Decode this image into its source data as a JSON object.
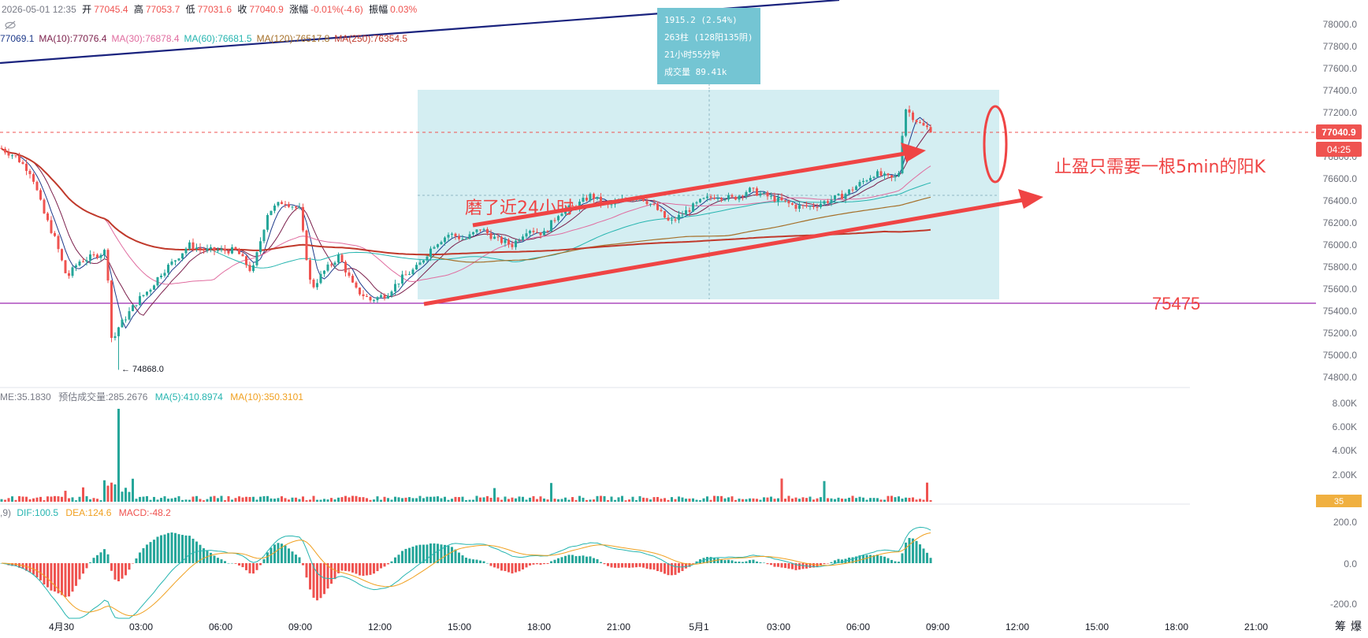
{
  "header": {
    "datetime": "2026-05-01 12:35",
    "open_label": "开",
    "open": "77045.4",
    "high_label": "高",
    "high": "77053.7",
    "low_label": "低",
    "low": "77031.6",
    "close_label": "收",
    "close": "77040.9",
    "change_label": "涨幅",
    "change": "-0.01%(-4.6)",
    "amplitude_label": "振幅",
    "amplitude": "0.03%"
  },
  "ma_legend": [
    {
      "text": "77069.1",
      "color": "#1e3a8a"
    },
    {
      "text": "MA(10):77076.4",
      "color": "#7b1f4b"
    },
    {
      "text": "MA(30):76878.4",
      "color": "#e06c9f"
    },
    {
      "text": "MA(60):76681.5",
      "color": "#26b5b0"
    },
    {
      "text": "MA(120):76517.8",
      "color": "#a5702a"
    },
    {
      "text": "MA(250):76354.5",
      "color": "#c0392b"
    }
  ],
  "measure_box": {
    "line1": "1915.2 (2.54%)",
    "line2": "263柱 (128阳135阴)",
    "line3": "21小时55分钟",
    "line4": "成交量 89.41k"
  },
  "annotations": {
    "grind": "磨了近24小时",
    "take_profit": "止盈只需要一根5min的阳K",
    "level": "75475",
    "low_marker": "← 74868.0"
  },
  "price_tag": {
    "price": "77040.9",
    "countdown": "04:25"
  },
  "volume_legend": {
    "vol": "ME:35.1830",
    "est_label": "预估成交量:285.2676",
    "ma5": "MA(5):410.8974",
    "ma10": "MA(10):350.3101",
    "tag": "35"
  },
  "macd_legend": {
    "prefix": ",9)",
    "dif": "DIF:100.5",
    "dea": "DEA:124.6",
    "macd": "MACD:-48.2"
  },
  "footer_icons": {
    "icon1": "筹",
    "icon2": "爆"
  },
  "colors": {
    "up": "#26a69a",
    "down": "#ef5350",
    "annot": "#ef4444",
    "box_fill": "#cdebf0",
    "measure_bg": "#74c5d3",
    "level_line": "#9c27b0"
  },
  "chart_data": {
    "type": "candlestick",
    "y_axis_ticks": [
      "78000.0",
      "77800.0",
      "77600.0",
      "77400.0",
      "77200.0",
      "77000.0",
      "76800.0",
      "76600.0",
      "76400.0",
      "76200.0",
      "76000.0",
      "75800.0",
      "75600.0",
      "75400.0",
      "75200.0",
      "75000.0",
      "74800.0"
    ],
    "ylim": [
      74700,
      78100
    ],
    "volume_ticks": [
      "8.00K",
      "6.00K",
      "4.00K",
      "2.00K"
    ],
    "macd_ticks": [
      "200.0",
      "0.0",
      "-200.0"
    ],
    "x_ticks": [
      "4月30",
      "03:00",
      "06:00",
      "09:00",
      "12:00",
      "15:00",
      "18:00",
      "21:00",
      "5月1",
      "03:00",
      "06:00",
      "09:00",
      "12:00",
      "15:00",
      "18:00",
      "21:00"
    ],
    "close_series": [
      [
        0,
        76880
      ],
      [
        20,
        76800
      ],
      [
        40,
        76650
      ],
      [
        55,
        76300
      ],
      [
        70,
        76050
      ],
      [
        85,
        75700
      ],
      [
        100,
        75850
      ],
      [
        120,
        75900
      ],
      [
        135,
        75950
      ],
      [
        142,
        75100
      ],
      [
        150,
        75250
      ],
      [
        160,
        75350
      ],
      [
        175,
        75500
      ],
      [
        190,
        75600
      ],
      [
        205,
        75750
      ],
      [
        220,
        75850
      ],
      [
        240,
        76000
      ],
      [
        260,
        75950
      ],
      [
        280,
        75950
      ],
      [
        300,
        75950
      ],
      [
        320,
        75750
      ],
      [
        340,
        76300
      ],
      [
        360,
        76400
      ],
      [
        380,
        76320
      ],
      [
        395,
        75600
      ],
      [
        410,
        75750
      ],
      [
        430,
        75900
      ],
      [
        450,
        75600
      ],
      [
        470,
        75500
      ],
      [
        490,
        75550
      ],
      [
        510,
        75700
      ],
      [
        530,
        75800
      ],
      [
        550,
        76000
      ],
      [
        570,
        76100
      ],
      [
        590,
        76050
      ],
      [
        610,
        76150
      ],
      [
        630,
        76050
      ],
      [
        650,
        76000
      ],
      [
        670,
        76150
      ],
      [
        690,
        76100
      ],
      [
        710,
        76300
      ],
      [
        730,
        76350
      ],
      [
        750,
        76450
      ],
      [
        770,
        76350
      ],
      [
        790,
        76400
      ],
      [
        810,
        76450
      ],
      [
        830,
        76350
      ],
      [
        850,
        76200
      ],
      [
        870,
        76300
      ],
      [
        890,
        76400
      ],
      [
        910,
        76450
      ],
      [
        930,
        76420
      ],
      [
        950,
        76500
      ],
      [
        970,
        76450
      ],
      [
        990,
        76400
      ],
      [
        1010,
        76350
      ],
      [
        1030,
        76350
      ],
      [
        1050,
        76400
      ],
      [
        1070,
        76450
      ],
      [
        1090,
        76550
      ],
      [
        1110,
        76650
      ],
      [
        1130,
        76600
      ],
      [
        1140,
        76620
      ],
      [
        1148,
        77250
      ],
      [
        1160,
        77150
      ],
      [
        1170,
        77080
      ],
      [
        1184,
        77041
      ]
    ],
    "reference_level": 75475,
    "low_marker": 74868.0,
    "measure": {
      "change": 1915.2,
      "change_pct": 2.54,
      "bars": 263,
      "up_bars": 128,
      "down_bars": 135,
      "duration": "21小时55分钟",
      "volume": "89.41k"
    },
    "macd": {
      "dif": 100.5,
      "dea": 124.6,
      "macd": -48.2
    },
    "volume": {
      "est": 285.2676,
      "ma5": 410.8974,
      "ma10": 350.3101
    }
  }
}
